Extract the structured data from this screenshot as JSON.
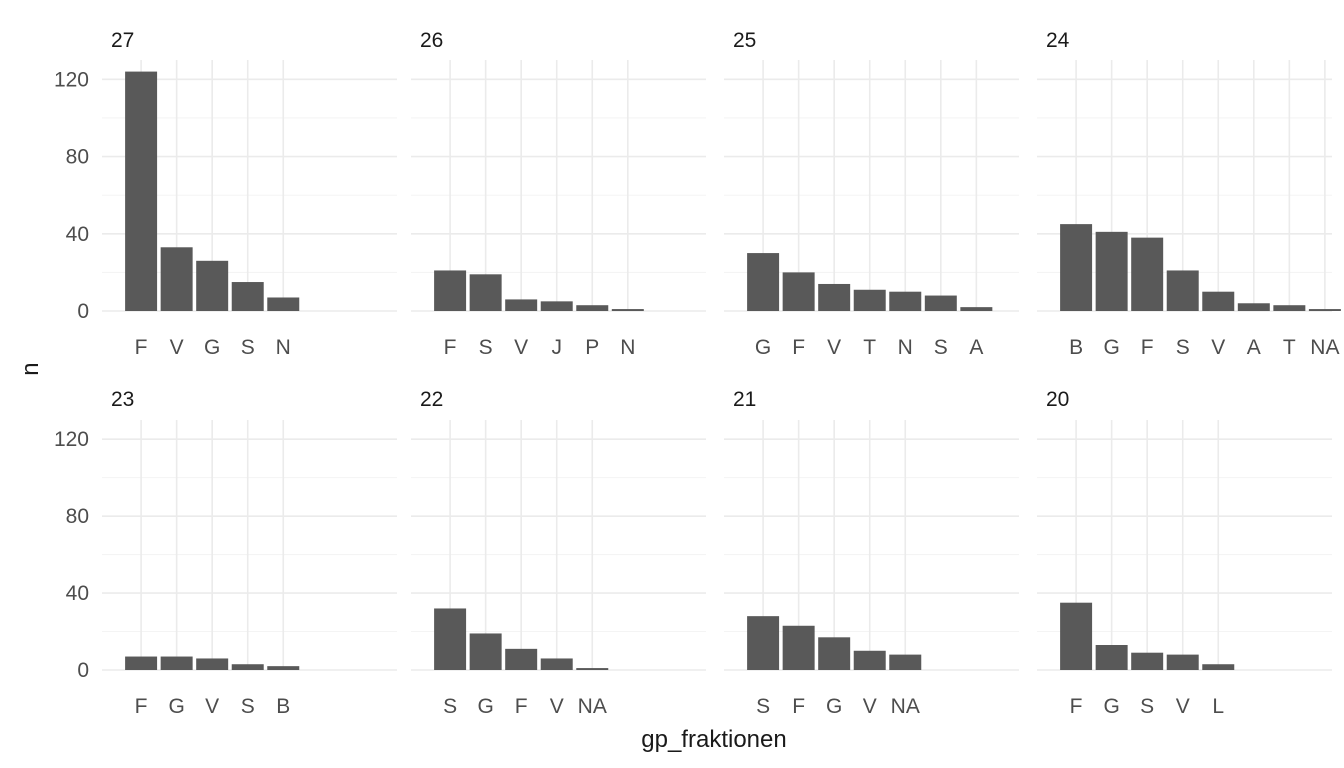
{
  "chart_data": {
    "type": "bar",
    "layout": "faceted",
    "xlabel": "gp_fraktionen",
    "ylabel": "n",
    "ylim": [
      0,
      130
    ],
    "yticks": [
      0,
      40,
      80,
      120
    ],
    "grid": true,
    "bar_color": "#595959",
    "panels": [
      {
        "title": "27",
        "categories": [
          "F",
          "V",
          "G",
          "S",
          "N"
        ],
        "values": [
          124,
          33,
          26,
          15,
          7
        ]
      },
      {
        "title": "26",
        "categories": [
          "F",
          "S",
          "V",
          "J",
          "P",
          "N"
        ],
        "values": [
          21,
          19,
          6,
          5,
          3,
          1
        ]
      },
      {
        "title": "25",
        "categories": [
          "G",
          "F",
          "V",
          "T",
          "N",
          "S",
          "A"
        ],
        "values": [
          30,
          20,
          14,
          11,
          10,
          8,
          2
        ]
      },
      {
        "title": "24",
        "categories": [
          "B",
          "G",
          "F",
          "S",
          "V",
          "A",
          "T",
          "NA"
        ],
        "values": [
          45,
          41,
          38,
          21,
          10,
          4,
          3,
          1
        ]
      },
      {
        "title": "23",
        "categories": [
          "F",
          "G",
          "V",
          "S",
          "B"
        ],
        "values": [
          7,
          7,
          6,
          3,
          2
        ]
      },
      {
        "title": "22",
        "categories": [
          "S",
          "G",
          "F",
          "V",
          "NA"
        ],
        "values": [
          32,
          19,
          11,
          6,
          1
        ]
      },
      {
        "title": "21",
        "categories": [
          "S",
          "F",
          "G",
          "V",
          "NA"
        ],
        "values": [
          28,
          23,
          17,
          10,
          8
        ]
      },
      {
        "title": "20",
        "categories": [
          "F",
          "G",
          "S",
          "V",
          "L"
        ],
        "values": [
          35,
          13,
          9,
          8,
          3
        ]
      }
    ]
  }
}
